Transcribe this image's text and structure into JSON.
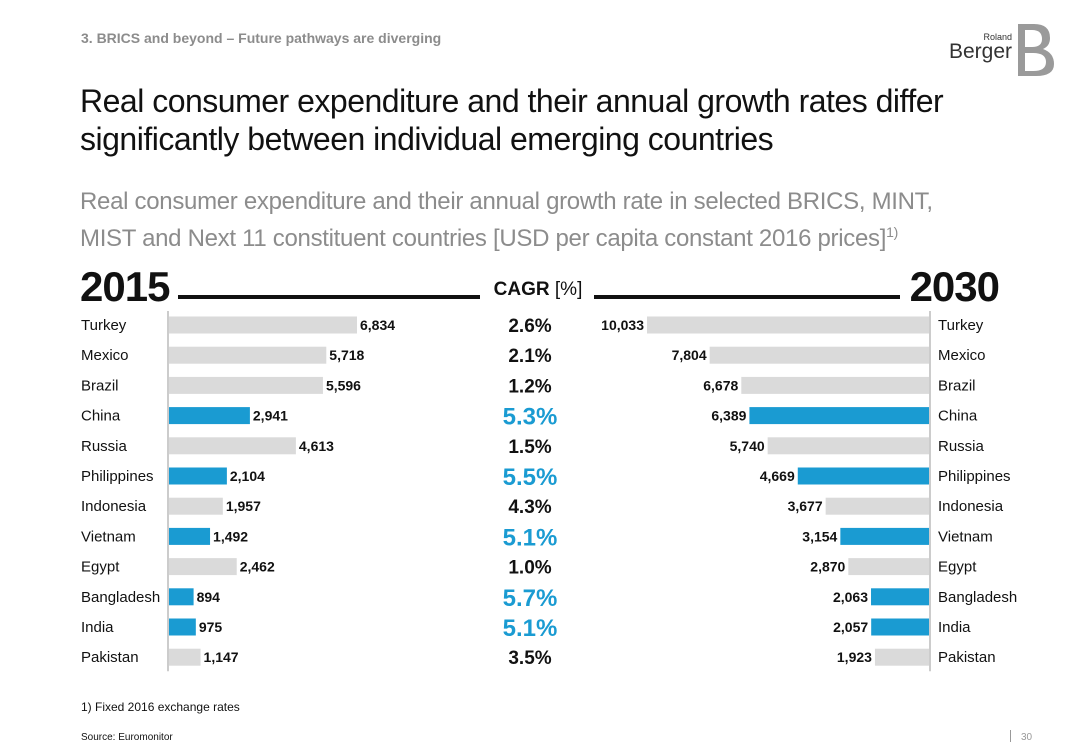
{
  "header": {
    "section": "3. BRICS and beyond – Future pathways are diverging",
    "logo_top": "Roland",
    "logo_main": "Berger"
  },
  "title_line1": "Real consumer expenditure and their annual growth rates differ",
  "title_line2": "significantly between individual emerging countries",
  "subtitle_line1": "Real consumer expenditure and their annual growth rate in selected BRICS, MINT,",
  "subtitle_line2": "MIST and Next 11 constituent countries [USD per capita constant 2016 prices]",
  "subtitle_sup": "1)",
  "footnote": "1) Fixed 2016 exchange rates",
  "source": "Source: Euromonitor",
  "page_number": "30",
  "colors": {
    "highlight": "#1a9bd2",
    "grey_bar": "#dadada",
    "text": "#111111"
  },
  "chart_data": {
    "type": "bar",
    "left_heading": "2015",
    "right_heading": "2030",
    "middle_heading": "CAGR",
    "middle_unit": "[%]",
    "categories": [
      "Turkey",
      "Mexico",
      "Brazil",
      "China",
      "Russia",
      "Philippines",
      "Indonesia",
      "Vietnam",
      "Egypt",
      "Bangladesh",
      "India",
      "Pakistan"
    ],
    "series": [
      {
        "name": "2015",
        "values": [
          6834,
          5718,
          5596,
          2941,
          4613,
          2104,
          1957,
          1492,
          2462,
          894,
          975,
          1147
        ]
      },
      {
        "name": "2030",
        "values": [
          10033,
          7804,
          6678,
          6389,
          5740,
          4669,
          3677,
          3154,
          2870,
          2063,
          2057,
          1923
        ]
      }
    ],
    "value_labels_2015": [
      "6,834",
      "5,718",
      "5,596",
      "2,941",
      "4,613",
      "2,104",
      "1,957",
      "1,492",
      "2,462",
      "894",
      "975",
      "1,147"
    ],
    "value_labels_2030": [
      "10,033",
      "7,804",
      "6,678",
      "6,389",
      "5,740",
      "4,669",
      "3,677",
      "3,154",
      "2,870",
      "2,063",
      "2,057",
      "1,923"
    ],
    "cagr": [
      "2.6%",
      "2.1%",
      "1.2%",
      "5.3%",
      "1.5%",
      "5.5%",
      "4.3%",
      "5.1%",
      "1.0%",
      "5.7%",
      "5.1%",
      "3.5%"
    ],
    "highlighted": [
      false,
      false,
      false,
      true,
      false,
      true,
      false,
      true,
      false,
      true,
      true,
      false
    ]
  }
}
